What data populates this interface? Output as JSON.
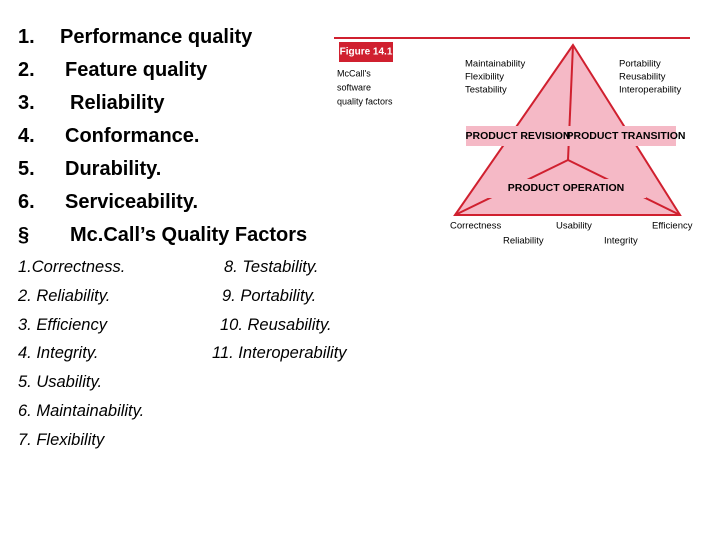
{
  "list": [
    {
      "marker": "1.",
      "text": "Performance quality"
    },
    {
      "marker": "2.",
      "text": "Feature quality"
    },
    {
      "marker": "3.",
      "text": "Reliability"
    },
    {
      "marker": "4.",
      "text": "Conformance."
    },
    {
      "marker": "5.",
      "text": "Durability."
    },
    {
      "marker": "6.",
      "text": "Serviceability."
    },
    {
      "marker": "§",
      "text": "Mc.Call’s Quality Factors"
    }
  ],
  "factors_left": [
    "1.Correctness.",
    "2. Reliability.",
    "3. Efficiency",
    "4. Integrity.",
    "5. Usability.",
    "6. Maintainability.",
    "7. Flexibility"
  ],
  "factors_right": [
    "8. Testability.",
    "9. Portability.",
    "10. Reusability.",
    "11. Interoperability"
  ],
  "figure": {
    "label": "Figure 14.1",
    "caption": [
      "McCall's",
      "software",
      "quality factors"
    ],
    "revision_factors": [
      "Maintainability",
      "Flexibility",
      "Testability"
    ],
    "transition_factors": [
      "Portability",
      "Reusability",
      "Interoperability"
    ],
    "revision": "PRODUCT REVISION",
    "transition": "PRODUCT TRANSITION",
    "operation": "PRODUCT OPERATION",
    "operation_factors": [
      "Correctness",
      "Reliability",
      "Usability",
      "Integrity",
      "Efficiency"
    ]
  }
}
